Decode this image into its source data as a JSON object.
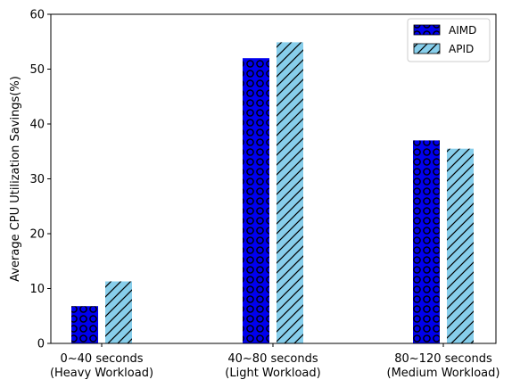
{
  "chart_data": {
    "type": "bar",
    "categories": [
      "0~40 seconds\n(Heavy Workload)",
      "40~80 seconds\n(Light Workload)",
      "80~120 seconds\n(Medium Workload)"
    ],
    "series": [
      {
        "name": "AIMD",
        "values": [
          6.8,
          52.0,
          37.0
        ],
        "color": "#0000ee",
        "hatch": "circles"
      },
      {
        "name": "APID",
        "values": [
          11.3,
          54.9,
          35.5
        ],
        "color": "#87ceeb",
        "hatch": "diagonal"
      }
    ],
    "xlabel": "",
    "ylabel": "Average CPU Utilization Savings(%)",
    "ylim": [
      0,
      60
    ],
    "yticks": [
      0,
      10,
      20,
      30,
      40,
      50,
      60
    ],
    "grid": false,
    "legend_position": "top-right"
  }
}
